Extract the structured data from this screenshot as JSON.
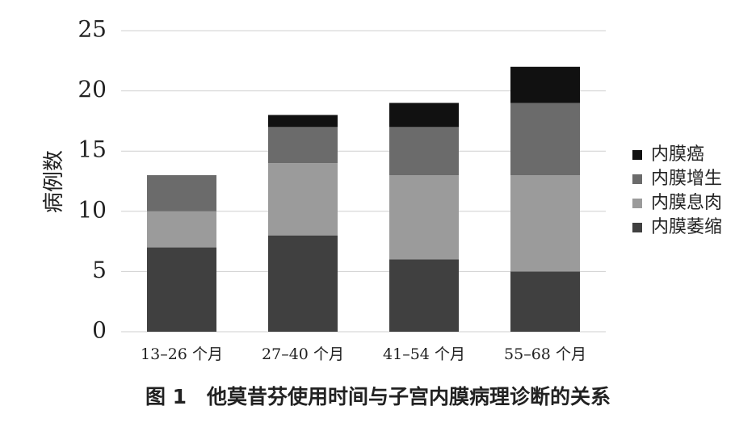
{
  "chart_data": {
    "type": "stacked_bar",
    "caption": "图 1　他莫昔芬使用时间与子宫内膜病理诊断的关系",
    "y_label": "病例数",
    "categories": [
      "13–26 个月",
      "27–40 个月",
      "41–54 个月",
      "55–68 个月"
    ],
    "series": [
      {
        "name": "内膜萎缩",
        "color": "#404040",
        "values": [
          7,
          8,
          6,
          5
        ]
      },
      {
        "name": "内膜息肉",
        "color": "#9b9b9b",
        "values": [
          3,
          6,
          7,
          8
        ]
      },
      {
        "name": "内膜增生",
        "color": "#6b6b6b",
        "values": [
          3,
          3,
          4,
          6
        ]
      },
      {
        "name": "内膜癌",
        "color": "#111111",
        "values": [
          0,
          1,
          2,
          3
        ]
      }
    ],
    "ylim": [
      0,
      25
    ],
    "yticks": [
      0,
      5,
      10,
      15,
      20,
      25
    ],
    "grid": true,
    "legend": "right"
  }
}
